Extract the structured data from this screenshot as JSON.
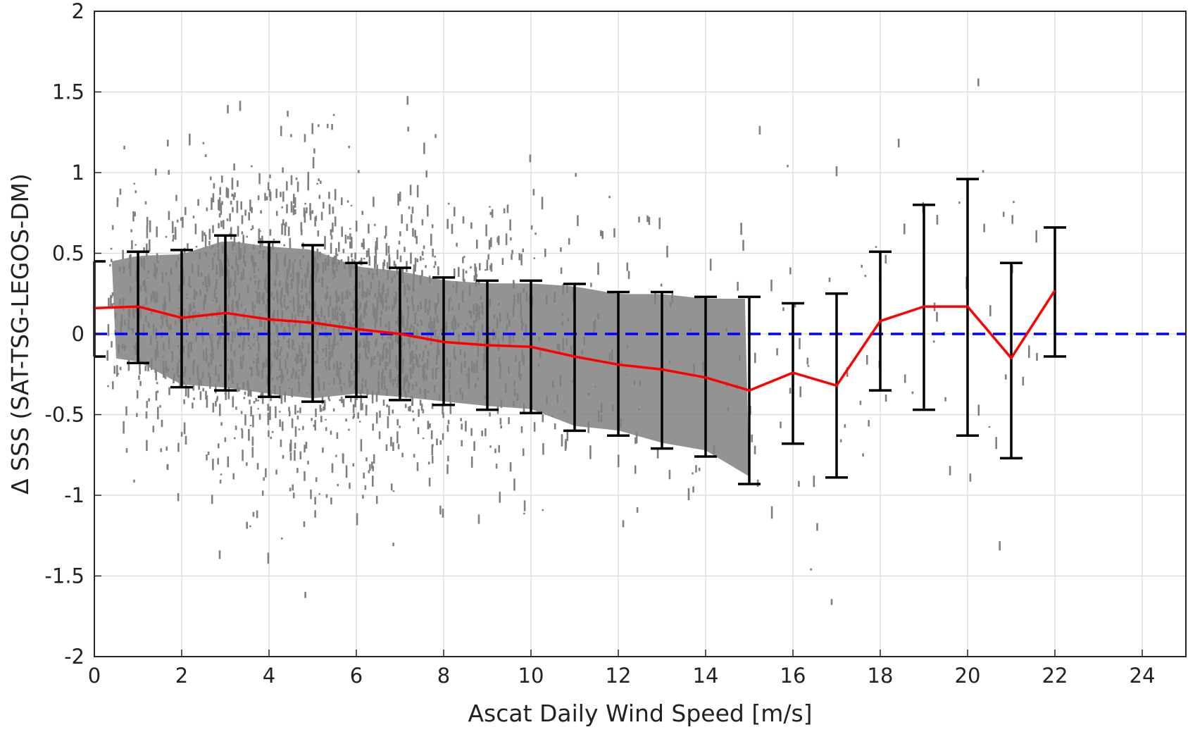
{
  "chart_data": {
    "type": "scatter",
    "xlabel": "Ascat Daily Wind Speed [m/s]",
    "ylabel": "Δ SSS (SAT-TSG-LEGOS-DM)",
    "xlim": [
      0,
      25
    ],
    "ylim": [
      -2,
      2
    ],
    "xticks": [
      0,
      2,
      4,
      6,
      8,
      10,
      12,
      14,
      16,
      18,
      20,
      22,
      24
    ],
    "yticks": [
      -2,
      -1.5,
      -1,
      -0.5,
      0,
      0.5,
      1,
      1.5,
      2
    ],
    "xtick_labels": [
      "0",
      "2",
      "4",
      "6",
      "8",
      "10",
      "12",
      "14",
      "16",
      "18",
      "20",
      "22",
      "24"
    ],
    "ytick_labels": [
      "-2",
      "-1.5",
      "-1",
      "-0.5",
      "0",
      "0.5",
      "1",
      "1.5",
      "2"
    ],
    "grid": true,
    "colors": {
      "scatter": "#808080",
      "mean_line": "#ff0000",
      "zero_line": "#0000ff",
      "errorbar": "#000000",
      "grid": "#d9d9d9"
    },
    "series": [
      {
        "kind": "errorbar-line",
        "x": [
          0,
          1,
          2,
          3,
          4,
          5,
          6,
          7,
          8,
          9,
          10,
          11,
          12,
          13,
          14,
          15,
          16,
          17,
          18,
          19,
          20,
          21,
          22
        ],
        "mean": [
          0.16,
          0.17,
          0.1,
          0.13,
          0.09,
          0.07,
          0.03,
          0.0,
          -0.05,
          -0.07,
          -0.08,
          -0.14,
          -0.19,
          -0.22,
          -0.27,
          -0.35,
          -0.24,
          -0.32,
          0.08,
          0.17,
          0.17,
          -0.15,
          0.27
        ],
        "upper": [
          0.45,
          0.51,
          0.52,
          0.61,
          0.57,
          0.55,
          0.44,
          0.41,
          0.35,
          0.33,
          0.33,
          0.31,
          0.26,
          0.26,
          0.23,
          0.23,
          0.19,
          0.25,
          0.51,
          0.8,
          0.96,
          0.44,
          0.66
        ],
        "lower": [
          -0.14,
          -0.18,
          -0.33,
          -0.35,
          -0.39,
          -0.42,
          -0.39,
          -0.41,
          -0.44,
          -0.47,
          -0.49,
          -0.6,
          -0.63,
          -0.71,
          -0.76,
          -0.93,
          -0.68,
          -0.89,
          -0.35,
          -0.47,
          -0.63,
          -0.77,
          -0.14
        ]
      },
      {
        "kind": "reference-line",
        "y": 0
      }
    ]
  }
}
